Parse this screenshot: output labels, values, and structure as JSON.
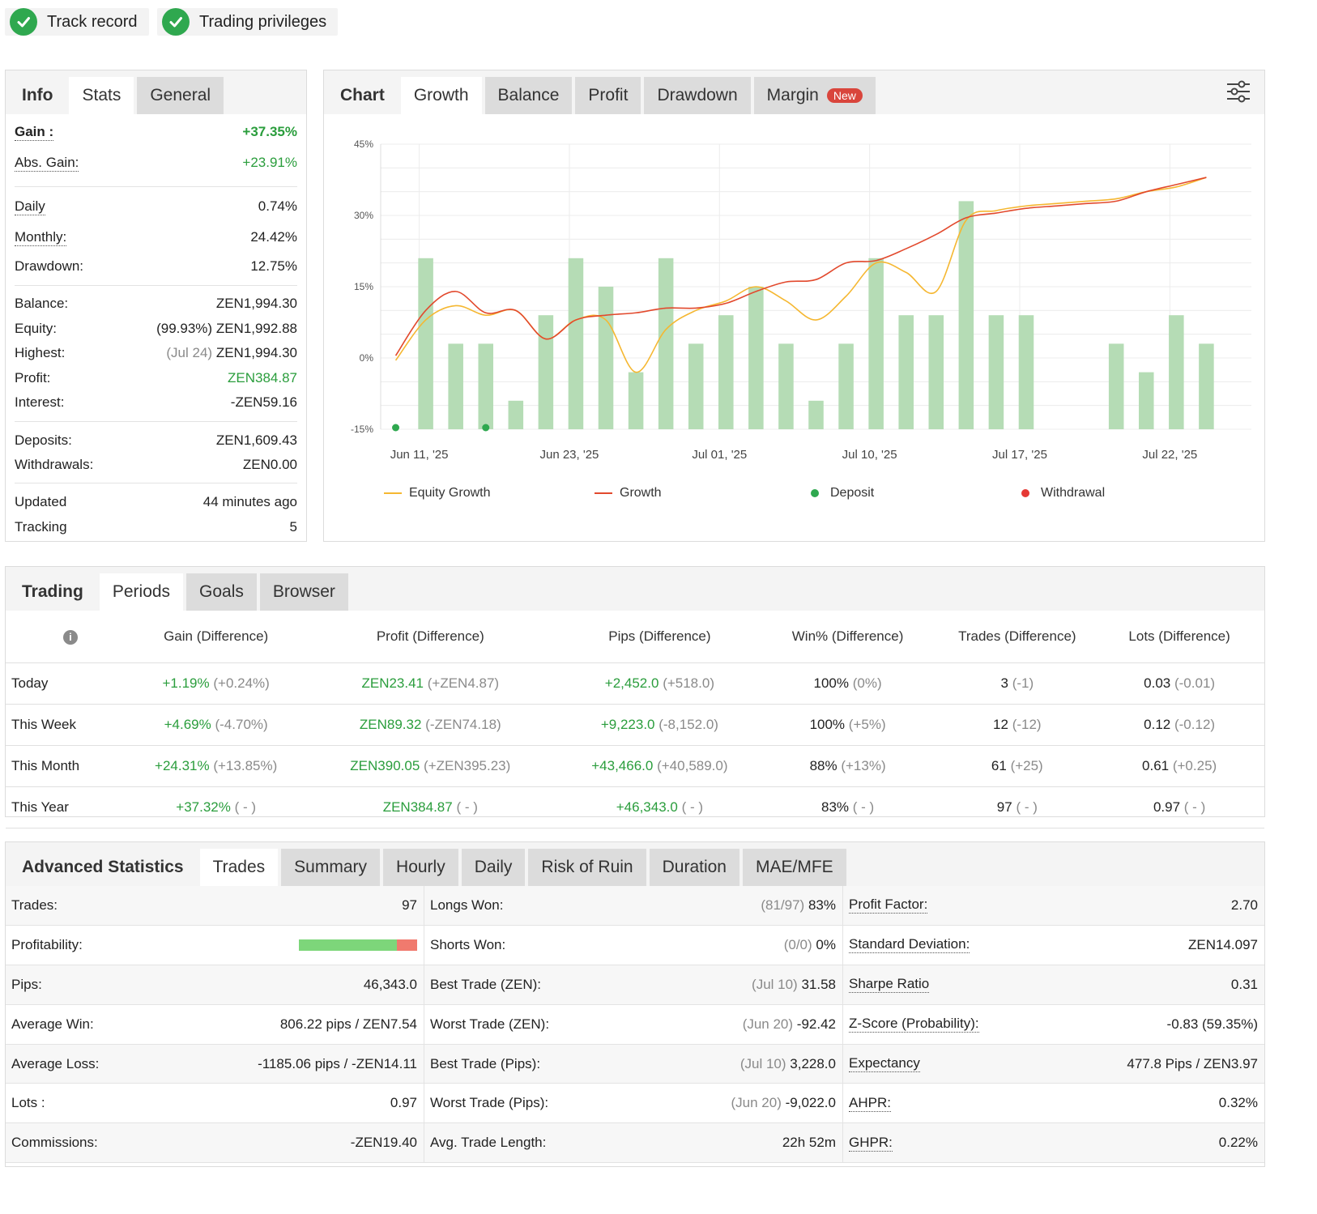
{
  "badges": [
    {
      "label": "Track record"
    },
    {
      "label": "Trading privileges"
    }
  ],
  "info_panel": {
    "tabs": [
      "Info",
      "Stats",
      "General"
    ],
    "gain": {
      "label": "Gain :",
      "value": "+37.35%"
    },
    "abs_gain": {
      "label": "Abs. Gain:",
      "value": "+23.91%"
    },
    "daily": {
      "label": "Daily",
      "value": "0.74%"
    },
    "monthly": {
      "label": "Monthly:",
      "value": "24.42%"
    },
    "drawdown": {
      "label": "Drawdown:",
      "value": "12.75%"
    },
    "balance": {
      "label": "Balance:",
      "value": "ZEN1,994.30"
    },
    "equity": {
      "label": "Equity:",
      "note": "(99.93%)",
      "value": "ZEN1,992.88"
    },
    "highest": {
      "label": "Highest:",
      "note": "(Jul 24)",
      "value": "ZEN1,994.30"
    },
    "profit": {
      "label": "Profit:",
      "value": "ZEN384.87"
    },
    "interest": {
      "label": "Interest:",
      "value": "-ZEN59.16"
    },
    "deposits": {
      "label": "Deposits:",
      "value": "ZEN1,609.43"
    },
    "withdrawals": {
      "label": "Withdrawals:",
      "value": "ZEN0.00"
    },
    "updated": {
      "label": "Updated",
      "value": "44 minutes ago"
    },
    "tracking": {
      "label": "Tracking",
      "value": "5"
    }
  },
  "chart_panel": {
    "tabs": [
      "Chart",
      "Growth",
      "Balance",
      "Profit",
      "Drawdown",
      "Margin"
    ],
    "new_tag": "New",
    "settings_icon": "sliders-icon"
  },
  "chart_data": {
    "type": "line",
    "ylim": [
      -15,
      45
    ],
    "y_ticks": [
      "45%",
      "30%",
      "15%",
      "0%",
      "-15%"
    ],
    "x_tick_labels": [
      "Jun 11, '25",
      "Jun 23, '25",
      "Jul 01, '25",
      "Jul 10, '25",
      "Jul 17, '25",
      "Jul 22, '25"
    ],
    "bars": [
      {
        "i": 1,
        "v": 21
      },
      {
        "i": 2,
        "v": 3
      },
      {
        "i": 3,
        "v": 3
      },
      {
        "i": 4,
        "v": -9
      },
      {
        "i": 5,
        "v": 9
      },
      {
        "i": 6,
        "v": 21
      },
      {
        "i": 7,
        "v": 15
      },
      {
        "i": 8,
        "v": -3
      },
      {
        "i": 9,
        "v": 21
      },
      {
        "i": 10,
        "v": 3
      },
      {
        "i": 11,
        "v": 9
      },
      {
        "i": 12,
        "v": 15
      },
      {
        "i": 13,
        "v": 3
      },
      {
        "i": 14,
        "v": -9
      },
      {
        "i": 15,
        "v": 3
      },
      {
        "i": 16,
        "v": 21
      },
      {
        "i": 17,
        "v": 9
      },
      {
        "i": 18,
        "v": 9
      },
      {
        "i": 19,
        "v": 33
      },
      {
        "i": 20,
        "v": 9
      },
      {
        "i": 21,
        "v": 9
      },
      {
        "i": 24,
        "v": 3
      },
      {
        "i": 25,
        "v": -3
      },
      {
        "i": 26,
        "v": 9
      },
      {
        "i": 27,
        "v": 3
      }
    ],
    "series": [
      {
        "name": "Equity Growth",
        "color": "#f5b731",
        "points": [
          [
            0,
            -0.5
          ],
          [
            1,
            8
          ],
          [
            2,
            11
          ],
          [
            3,
            9
          ],
          [
            4,
            10
          ],
          [
            5,
            4
          ],
          [
            6,
            8
          ],
          [
            7,
            8
          ],
          [
            8,
            -3
          ],
          [
            9,
            6
          ],
          [
            10,
            10
          ],
          [
            11,
            12
          ],
          [
            12,
            15
          ],
          [
            13,
            12
          ],
          [
            14,
            8
          ],
          [
            15,
            13
          ],
          [
            16,
            20
          ],
          [
            17,
            18
          ],
          [
            18,
            14
          ],
          [
            19,
            29
          ],
          [
            20,
            31
          ],
          [
            21,
            32
          ],
          [
            22,
            32.5
          ],
          [
            23,
            33
          ],
          [
            24,
            33.5
          ],
          [
            25,
            35
          ],
          [
            26,
            36
          ],
          [
            27,
            38
          ]
        ]
      },
      {
        "name": "Growth",
        "color": "#e2492d",
        "points": [
          [
            0,
            0.5
          ],
          [
            1,
            10
          ],
          [
            2,
            14
          ],
          [
            3,
            9.5
          ],
          [
            4,
            10
          ],
          [
            5,
            4
          ],
          [
            6,
            8
          ],
          [
            7,
            9
          ],
          [
            8,
            9.5
          ],
          [
            9,
            10.5
          ],
          [
            10,
            10.5
          ],
          [
            11,
            11.5
          ],
          [
            12,
            14
          ],
          [
            13,
            16
          ],
          [
            14,
            16.5
          ],
          [
            15,
            20
          ],
          [
            16,
            20.5
          ],
          [
            17,
            23
          ],
          [
            18,
            26
          ],
          [
            19,
            29.5
          ],
          [
            20,
            30.5
          ],
          [
            21,
            31.5
          ],
          [
            22,
            32
          ],
          [
            23,
            32.5
          ],
          [
            24,
            33
          ],
          [
            25,
            35
          ],
          [
            26,
            36.5
          ],
          [
            27,
            38
          ]
        ]
      }
    ],
    "deposits_at": [
      0,
      3
    ],
    "legend": [
      {
        "label": "Equity Growth",
        "color": "#f5b731",
        "kind": "line"
      },
      {
        "label": "Growth",
        "color": "#e2492d",
        "kind": "line"
      },
      {
        "label": "Deposit",
        "color": "#2fa84f",
        "kind": "dot"
      },
      {
        "label": "Withdrawal",
        "color": "#e53935",
        "kind": "dot"
      }
    ],
    "bar_color": "#b5dcb5",
    "grid": true
  },
  "trading_panel": {
    "tabs": [
      "Trading",
      "Periods",
      "Goals",
      "Browser"
    ],
    "info_icon": "info-icon",
    "headers": [
      "Gain (Difference)",
      "Profit (Difference)",
      "Pips (Difference)",
      "Win% (Difference)",
      "Trades (Difference)",
      "Lots (Difference)"
    ],
    "rows": [
      {
        "label": "Today",
        "cells": [
          [
            "+1.19%",
            "(+0.24%)"
          ],
          [
            "ZEN23.41",
            "(+ZEN4.87)"
          ],
          [
            "+2,452.0",
            "(+518.0)"
          ],
          [
            "100%",
            "(0%)"
          ],
          [
            "3",
            "(-1)"
          ],
          [
            "0.03",
            "(-0.01)"
          ]
        ]
      },
      {
        "label": "This Week",
        "cells": [
          [
            "+4.69%",
            "(-4.70%)"
          ],
          [
            "ZEN89.32",
            "(-ZEN74.18)"
          ],
          [
            "+9,223.0",
            "(-8,152.0)"
          ],
          [
            "100%",
            "(+5%)"
          ],
          [
            "12",
            "(-12)"
          ],
          [
            "0.12",
            "(-0.12)"
          ]
        ]
      },
      {
        "label": "This Month",
        "cells": [
          [
            "+24.31%",
            "(+13.85%)"
          ],
          [
            "ZEN390.05",
            "(+ZEN395.23)"
          ],
          [
            "+43,466.0",
            "(+40,589.0)"
          ],
          [
            "88%",
            "(+13%)"
          ],
          [
            "61",
            "(+25)"
          ],
          [
            "0.61",
            "(+0.25)"
          ]
        ]
      },
      {
        "label": "This Year",
        "cells": [
          [
            "+37.32%",
            "( - )"
          ],
          [
            "ZEN384.87",
            "( - )"
          ],
          [
            "+46,343.0",
            "( - )"
          ],
          [
            "83%",
            "( - )"
          ],
          [
            "97",
            "( - )"
          ],
          [
            "0.97",
            "( - )"
          ]
        ]
      }
    ]
  },
  "advanced_panel": {
    "tabs": [
      "Advanced Statistics",
      "Trades",
      "Summary",
      "Hourly",
      "Daily",
      "Risk of Ruin",
      "Duration",
      "MAE/MFE"
    ],
    "col1": [
      {
        "label": "Trades:",
        "value": "97"
      },
      {
        "label": "Profitability:",
        "value": "",
        "profitability": 0.83
      },
      {
        "label": "Pips:",
        "value": "46,343.0"
      },
      {
        "label": "Average Win:",
        "value": "806.22 pips / ZEN7.54"
      },
      {
        "label": "Average Loss:",
        "value": "-1185.06 pips / -ZEN14.11"
      },
      {
        "label": "Lots :",
        "value": "0.97"
      },
      {
        "label": "Commissions:",
        "value": "-ZEN19.40"
      }
    ],
    "col2": [
      {
        "label": "Longs Won:",
        "note": "(81/97)",
        "value": "83%"
      },
      {
        "label": "Shorts Won:",
        "note": "(0/0)",
        "value": "0%"
      },
      {
        "label": "Best Trade (ZEN):",
        "note": "(Jul 10)",
        "value": "31.58"
      },
      {
        "label": "Worst Trade (ZEN):",
        "note": "(Jun 20)",
        "value": "-92.42"
      },
      {
        "label": "Best Trade (Pips):",
        "note": "(Jul 10)",
        "value": "3,228.0"
      },
      {
        "label": "Worst Trade (Pips):",
        "note": "(Jun 20)",
        "value": "-9,022.0"
      },
      {
        "label": "Avg. Trade Length:",
        "note": "",
        "value": "22h 52m"
      }
    ],
    "col3": [
      {
        "label": "Profit Factor:",
        "value": "2.70"
      },
      {
        "label": "Standard Deviation:",
        "value": "ZEN14.097"
      },
      {
        "label": "Sharpe Ratio",
        "value": "0.31"
      },
      {
        "label": "Z-Score (Probability):",
        "value": "-0.83 (59.35%)"
      },
      {
        "label": "Expectancy",
        "value": "477.8 Pips / ZEN3.97"
      },
      {
        "label": "AHPR:",
        "value": "0.32%"
      },
      {
        "label": "GHPR:",
        "value": "0.22%"
      }
    ]
  }
}
